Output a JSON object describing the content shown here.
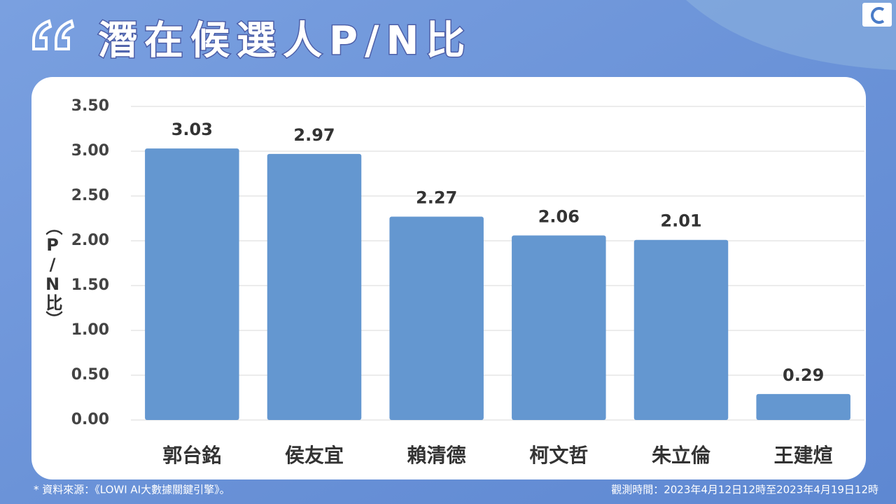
{
  "chart_data": {
    "type": "bar",
    "title": "潛在候選人P/N比",
    "y_label": "（P/N比）",
    "categories": [
      "郭台銘",
      "侯友宜",
      "賴清德",
      "柯文哲",
      "朱立倫",
      "王建煊"
    ],
    "values": [
      3.03,
      2.97,
      2.27,
      2.06,
      2.01,
      0.29
    ],
    "color": "#6497d0",
    "ylim": [
      0,
      3.5
    ],
    "yticks": [
      {
        "value": 0,
        "label": "0.00"
      },
      {
        "value": 0.5,
        "label": "0.50"
      },
      {
        "value": 1,
        "label": "1.00"
      },
      {
        "value": 1.5,
        "label": "1.50"
      },
      {
        "value": 2,
        "label": "2.00"
      },
      {
        "value": 2.5,
        "label": "2.50"
      },
      {
        "value": 3,
        "label": "3.00"
      },
      {
        "value": 3.5,
        "label": "3.50"
      }
    ],
    "grid": true,
    "source": "* 資料來源：《LOWI AI大數據關鍵引擎》。",
    "observation_time": "觀測時間：2023年4月12日12時至2023年4月19日12時"
  }
}
